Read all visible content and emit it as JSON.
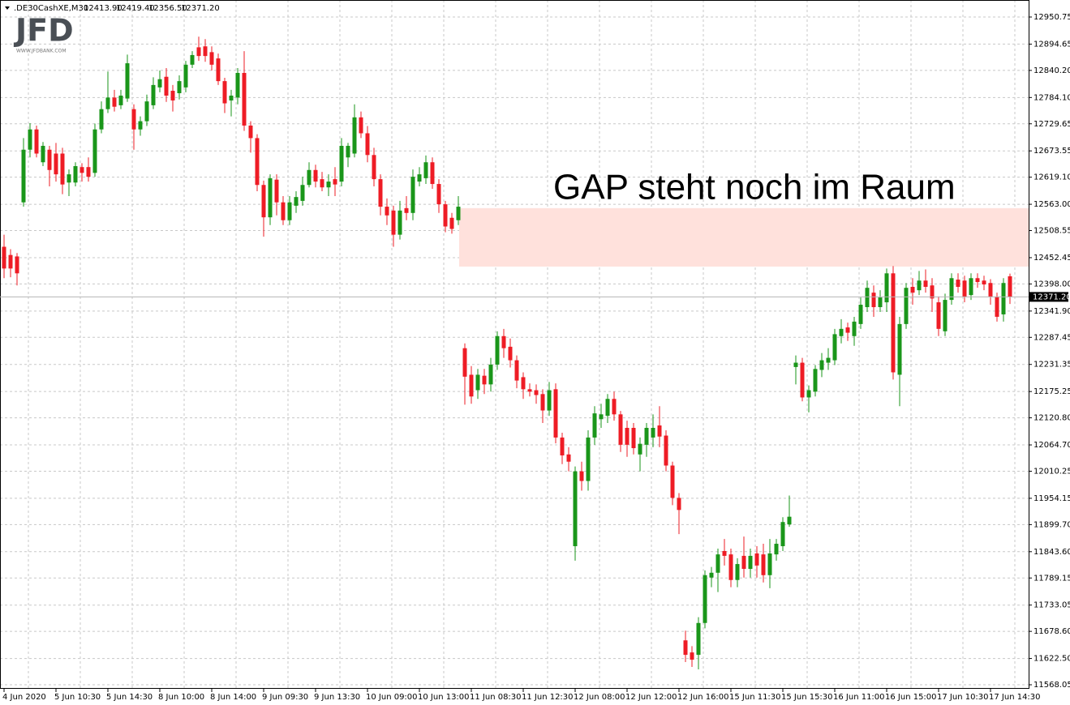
{
  "chart_data": {
    "type": "candlestick",
    "header": {
      "symbol": ".DE30CashXE,M30",
      "ohlc": [
        {
          "value": 12413.9,
          "label": "12413.90"
        },
        {
          "value": 12419.4,
          "label": "12419.40"
        },
        {
          "value": 12356.5,
          "label": "12356.50"
        },
        {
          "value": 12371.2,
          "label": "12371.20"
        }
      ]
    },
    "logo": {
      "text": "JFD",
      "subtext": "WWW.JFDBANK.COM"
    },
    "annotation": "GAP steht noch im Raum",
    "gap_zone": {
      "low": 12434,
      "high": 12555,
      "color": "#ffe1dc"
    },
    "up_color": "#1a961a",
    "down_color": "#ee1c25",
    "last_price": {
      "value": 12371.2,
      "label": "12371.20"
    },
    "categories": [
      "4 Jun 2020",
      null,
      null,
      null,
      null,
      null,
      null,
      null,
      "5 Jun 10:30",
      null,
      null,
      null,
      null,
      null,
      null,
      null,
      "5 Jun 14:30",
      null,
      null,
      null,
      null,
      null,
      null,
      null,
      "8 Jun 10:00",
      null,
      null,
      null,
      null,
      null,
      null,
      null,
      "8 Jun 14:00",
      null,
      null,
      null,
      null,
      null,
      null,
      null,
      "9 Jun 09:30",
      null,
      null,
      null,
      null,
      null,
      null,
      null,
      "9 Jun 13:30",
      null,
      null,
      null,
      null,
      null,
      null,
      null,
      "10 Jun 09:00",
      null,
      null,
      null,
      null,
      null,
      null,
      null,
      "10 Jun 13:00",
      null,
      null,
      null,
      null,
      null,
      null,
      null,
      "11 Jun 08:30",
      null,
      null,
      null,
      null,
      null,
      null,
      null,
      "11 Jun 12:30",
      null,
      null,
      null,
      null,
      null,
      null,
      null,
      "12 Jun 08:00",
      null,
      null,
      null,
      null,
      null,
      null,
      null,
      "12 Jun 12:00",
      null,
      null,
      null,
      null,
      null,
      null,
      null,
      "12 Jun 16:00",
      null,
      null,
      null,
      null,
      null,
      null,
      null,
      "15 Jun 11:30",
      null,
      null,
      null,
      null,
      null,
      null,
      null,
      "15 Jun 15:30",
      null,
      null,
      null,
      null,
      null,
      null,
      null,
      "16 Jun 11:00",
      null,
      null,
      null,
      null,
      null,
      null,
      null,
      "16 Jun 15:00",
      null,
      null,
      null,
      null,
      null,
      null,
      null,
      "17 Jun 10:30",
      null,
      null,
      null,
      null,
      null,
      null,
      null,
      "17 Jun 14:30",
      null,
      null,
      null
    ],
    "open": [
      12475,
      12458,
      12455,
      12567,
      12676,
      12718,
      12650,
      12676,
      12668,
      12668,
      12608,
      12608,
      12640,
      12640,
      12628,
      12718,
      12760,
      12784,
      12768,
      12782,
      12760,
      12718,
      12735,
      12768,
      12805,
      12827,
      12798,
      12793,
      12805,
      12852,
      12888,
      12890,
      12878,
      12865,
      12818,
      12778,
      12784,
      12835,
      12726,
      12700,
      12603,
      12536,
      12614,
      12567,
      12530,
      12560,
      12570,
      12603,
      12634,
      12615,
      12598,
      12615,
      12610,
      12660,
      12668,
      12743,
      12710,
      12665,
      12615,
      12558,
      12550,
      12500,
      12555,
      12545,
      12610,
      12617,
      12650,
      12605,
      12563,
      12535,
      12530,
      12265,
      12210,
      12178,
      12208,
      12190,
      12231,
      12290,
      12268,
      12240,
      12205,
      12180,
      12178,
      12170,
      12136,
      12180,
      12080,
      12045,
      11855,
      12010,
      11990,
      12080,
      12118,
      12125,
      12160,
      12128,
      12100,
      12100,
      12045,
      12065,
      12080,
      12105,
      12084,
      12022,
      11955,
      11660,
      11635,
      11630,
      11696,
      11790,
      11800,
      11845,
      11838,
      11785,
      11835,
      11808,
      11840,
      11838,
      11795,
      11838,
      11855,
      11900,
      12226,
      12235,
      12163,
      12175,
      12220,
      12235,
      12240,
      12290,
      12308,
      12290,
      12315,
      12350,
      12380,
      12350,
      12360,
      12420,
      12210,
      12315,
      12392,
      12385,
      12405,
      12395,
      12360,
      12300,
      12365,
      12407,
      12405,
      12375,
      12410,
      12405,
      12400,
      12372,
      12335,
      12413.9
    ],
    "high": [
      12500,
      12470,
      12462,
      12700,
      12731,
      12726,
      12692,
      12684,
      12690,
      12680,
      12635,
      12650,
      12648,
      12660,
      12730,
      12776,
      12838,
      12800,
      12800,
      12873,
      12770,
      12745,
      12790,
      12826,
      12840,
      12845,
      12810,
      12830,
      12860,
      12880,
      12910,
      12905,
      12890,
      12875,
      12825,
      12800,
      12845,
      12880,
      12735,
      12708,
      12612,
      12625,
      12625,
      12580,
      12580,
      12590,
      12620,
      12650,
      12645,
      12630,
      12625,
      12640,
      12700,
      12690,
      12770,
      12755,
      12725,
      12680,
      12625,
      12575,
      12560,
      12570,
      12580,
      12635,
      12640,
      12664,
      12660,
      12615,
      12570,
      12545,
      12580,
      12275,
      12228,
      12222,
      12222,
      12245,
      12300,
      12305,
      12285,
      12250,
      12215,
      12192,
      12190,
      12180,
      12195,
      12192,
      12090,
      12060,
      12020,
      12030,
      12095,
      12145,
      12150,
      12170,
      12175,
      12135,
      12115,
      12110,
      12080,
      12110,
      12128,
      12145,
      12095,
      12030,
      11965,
      11680,
      11648,
      11708,
      11805,
      11812,
      11850,
      11870,
      11850,
      11830,
      11875,
      11850,
      11855,
      11860,
      11870,
      11870,
      11915,
      11960,
      12250,
      12245,
      12188,
      12230,
      12255,
      12265,
      12305,
      12325,
      12318,
      12330,
      12370,
      12405,
      12395,
      12385,
      12430,
      12435,
      12330,
      12400,
      12410,
      12425,
      12428,
      12410,
      12372,
      12378,
      12420,
      12420,
      12415,
      12420,
      12420,
      12415,
      12408,
      12380,
      12410,
      12419.4
    ],
    "low": [
      12410,
      12412,
      12395,
      12558,
      12660,
      12660,
      12642,
      12600,
      12610,
      12584,
      12580,
      12600,
      12610,
      12610,
      12620,
      12710,
      12752,
      12755,
      12760,
      12775,
      12676,
      12705,
      12725,
      12760,
      12795,
      12775,
      12755,
      12780,
      12795,
      12845,
      12860,
      12858,
      12840,
      12810,
      12752,
      12745,
      12770,
      12715,
      12670,
      12590,
      12496,
      12520,
      12540,
      12520,
      12520,
      12545,
      12560,
      12598,
      12598,
      12590,
      12580,
      12580,
      12600,
      12640,
      12660,
      12700,
      12650,
      12600,
      12540,
      12520,
      12475,
      12490,
      12530,
      12530,
      12600,
      12605,
      12595,
      12545,
      12505,
      12502,
      12520,
      12148,
      12150,
      12160,
      12170,
      12175,
      12220,
      12245,
      12225,
      12182,
      12160,
      12165,
      12150,
      12110,
      12125,
      12068,
      12025,
      12010,
      11825,
      11970,
      11970,
      12065,
      12100,
      12110,
      12115,
      12050,
      12040,
      12045,
      12010,
      12040,
      12060,
      12060,
      12010,
      11940,
      11880,
      11615,
      11605,
      11600,
      11685,
      11770,
      11760,
      11815,
      11770,
      11770,
      11790,
      11790,
      11790,
      11780,
      11768,
      11825,
      11845,
      11895,
      12190,
      12155,
      12132,
      12165,
      12205,
      12220,
      12230,
      12275,
      12280,
      12270,
      12305,
      12340,
      12330,
      12340,
      12340,
      12200,
      12145,
      12305,
      12355,
      12375,
      12380,
      12340,
      12290,
      12290,
      12355,
      12380,
      12360,
      12365,
      12390,
      12385,
      12355,
      12320,
      12320,
      12356.5
    ],
    "close": [
      12430,
      12430,
      12420,
      12676,
      12718,
      12668,
      12684,
      12634,
      12625,
      12604,
      12625,
      12642,
      12628,
      12620,
      12718,
      12760,
      12784,
      12765,
      12788,
      12855,
      12718,
      12735,
      12776,
      12810,
      12822,
      12788,
      12778,
      12818,
      12852,
      12872,
      12870,
      12870,
      12852,
      12818,
      12772,
      12788,
      12835,
      12726,
      12700,
      12603,
      12536,
      12617,
      12567,
      12530,
      12567,
      12578,
      12603,
      12634,
      12610,
      12598,
      12610,
      12604,
      12684,
      12684,
      12743,
      12710,
      12665,
      12615,
      12558,
      12540,
      12500,
      12550,
      12545,
      12620,
      12625,
      12650,
      12605,
      12563,
      12517,
      12512,
      12558,
      12206,
      12165,
      12210,
      12190,
      12231,
      12290,
      12265,
      12240,
      12198,
      12180,
      12175,
      12168,
      12136,
      12178,
      12080,
      12043,
      12030,
      12010,
      11990,
      12080,
      12130,
      12128,
      12160,
      12128,
      12065,
      12065,
      12058,
      12067,
      12100,
      12100,
      12082,
      12022,
      11955,
      11930,
      11630,
      11620,
      11696,
      11795,
      11800,
      11838,
      11835,
      11785,
      11818,
      11808,
      11835,
      11815,
      11795,
      11840,
      11860,
      11905,
      11916,
      12235,
      12163,
      12178,
      12222,
      12240,
      12245,
      12294,
      12305,
      12297,
      12320,
      12355,
      12390,
      12350,
      12370,
      12420,
      12215,
      12315,
      12390,
      12380,
      12405,
      12392,
      12368,
      12305,
      12365,
      12410,
      12392,
      12372,
      12410,
      12402,
      12397,
      12372,
      12330,
      12400,
      12371.2
    ],
    "ylim": [
      11559.7,
      12977.6
    ],
    "yticks": [
      12950.75,
      12894.65,
      {
        "value": 12840.2,
        "label": "12840.20"
      },
      {
        "value": 12784.1,
        "label": "12784.10"
      },
      12729.65,
      12673.55,
      {
        "value": 12619.1,
        "label": "12619.10"
      },
      {
        "value": 12563,
        "label": "12563.00"
      },
      12508.55,
      12452.45,
      {
        "value": 12398,
        "label": "12398.00"
      },
      {
        "value": 12341.9,
        "label": "12341.90"
      },
      12287.45,
      12231.35,
      12175.25,
      {
        "value": 12120.8,
        "label": "12120.80"
      },
      {
        "value": 12064.7,
        "label": "12064.70"
      },
      12010.25,
      11954.15,
      {
        "value": 11899.7,
        "label": "11899.70"
      },
      {
        "value": 11843.6,
        "label": "11843.60"
      },
      11789.15,
      11733.05,
      {
        "value": 11678.6,
        "label": "11678.60"
      },
      {
        "value": 11622.5,
        "label": "11622.50"
      },
      11568.05
    ],
    "grid": true
  }
}
